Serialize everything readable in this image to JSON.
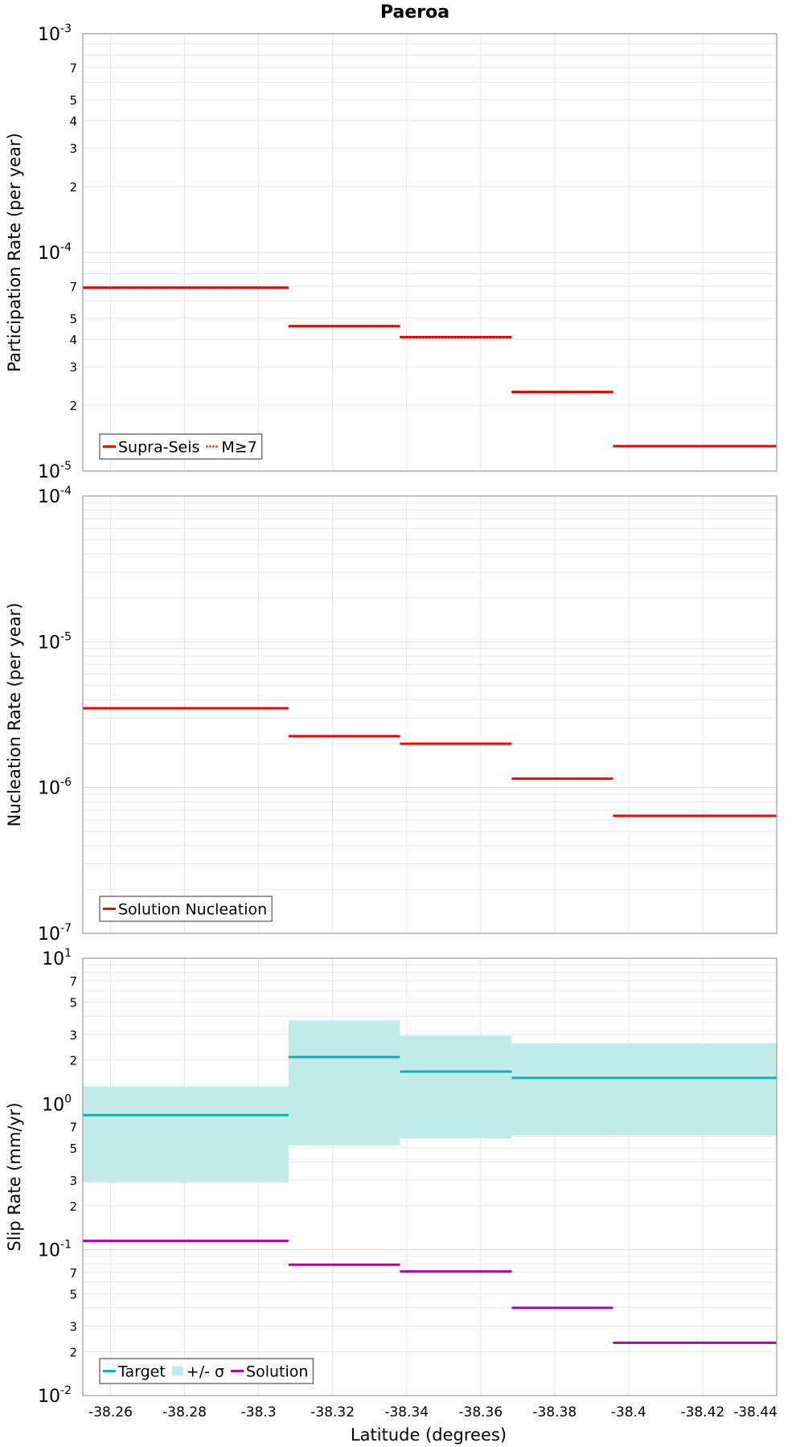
{
  "chart_data": {
    "type": "step-line",
    "title": "Paeroa",
    "xlabel": "Latitude (degrees)",
    "x_ticks": [
      "-38.26",
      "-38.28",
      "-38.3",
      "-38.32",
      "-38.34",
      "-38.36",
      "-38.38",
      "-38.4",
      "-38.42",
      "-38.44"
    ],
    "x_tick_values": [
      -38.26,
      -38.28,
      -38.3,
      -38.32,
      -38.34,
      -38.36,
      -38.38,
      -38.4,
      -38.42,
      -38.44
    ],
    "xlim": [
      -38.2525,
      -38.44
    ],
    "x_reversed": true,
    "segment_edges": [
      -38.2525,
      -38.3081,
      -38.3382,
      -38.3684,
      -38.3958,
      -38.44
    ],
    "colors": {
      "red": "#ff0000",
      "teal": "#14b0b0",
      "band": "#c0ebe9",
      "magenta": "#b000b0",
      "grid": "#e8e8e8"
    },
    "panels": [
      {
        "id": "participation",
        "ylabel": "Participation Rate (per year)",
        "yscale": "log",
        "ylim": [
          1e-05,
          0.001
        ],
        "major_exponents": [
          -5,
          -4,
          -3
        ],
        "minor_labels": [
          2,
          3,
          4,
          5,
          7
        ],
        "legend_position": "bottom-left",
        "legend": [
          {
            "label": "Supra-Seis",
            "style": "solid",
            "color": "#ff0000"
          },
          {
            "label": "M≥7",
            "style": "dotted",
            "color": "#ff0000"
          }
        ],
        "series": [
          {
            "name": "Supra-Seis",
            "style": "solid",
            "color": "#ff0000",
            "values": [
              6.9e-05,
              4.6e-05,
              4.1e-05,
              2.3e-05,
              1.3e-05
            ]
          },
          {
            "name": "M≥7",
            "style": "dotted",
            "color": "#ff0000",
            "values": [
              6.9e-05,
              4.6e-05,
              4.1e-05,
              2.3e-05,
              1.3e-05
            ]
          }
        ]
      },
      {
        "id": "nucleation",
        "ylabel": "Nucleation Rate (per year)",
        "yscale": "log",
        "ylim": [
          1e-07,
          0.0001
        ],
        "major_exponents": [
          -7,
          -6,
          -5,
          -4
        ],
        "minor_labels": [],
        "legend_position": "bottom-left",
        "legend": [
          {
            "label": "Solution Nucleation",
            "style": "solid",
            "color": "#ff0000"
          }
        ],
        "series": [
          {
            "name": "Solution Nucleation",
            "style": "solid",
            "color": "#ff0000",
            "values": [
              3.5e-06,
              2.25e-06,
              2e-06,
              1.15e-06,
              6.4e-07
            ]
          }
        ]
      },
      {
        "id": "slip",
        "ylabel": "Slip Rate (mm/yr)",
        "yscale": "log",
        "ylim": [
          0.01,
          10
        ],
        "major_exponents": [
          -2,
          -1,
          0,
          1
        ],
        "minor_labels": [
          2,
          3,
          5,
          7
        ],
        "legend_position": "bottom-left",
        "legend": [
          {
            "label": "Target",
            "style": "solid",
            "color": "#14b0b0"
          },
          {
            "label": "+/- σ",
            "style": "band",
            "color": "#c0ebe9"
          },
          {
            "label": "Solution",
            "style": "solid",
            "color": "#b000b0"
          }
        ],
        "band": {
          "name": "+/- σ",
          "color": "#c0ebe9",
          "lower": [
            0.29,
            0.52,
            0.58,
            0.61,
            0.61
          ],
          "upper": [
            1.32,
            3.75,
            2.95,
            2.6,
            2.6
          ]
        },
        "series": [
          {
            "name": "Target",
            "style": "solid",
            "color": "#14b0b0",
            "values": [
              0.84,
              2.1,
              1.67,
              1.51,
              1.51
            ]
          },
          {
            "name": "Solution",
            "style": "solid",
            "color": "#b000b0",
            "values": [
              0.115,
              0.079,
              0.071,
              0.04,
              0.023
            ]
          }
        ]
      }
    ]
  }
}
